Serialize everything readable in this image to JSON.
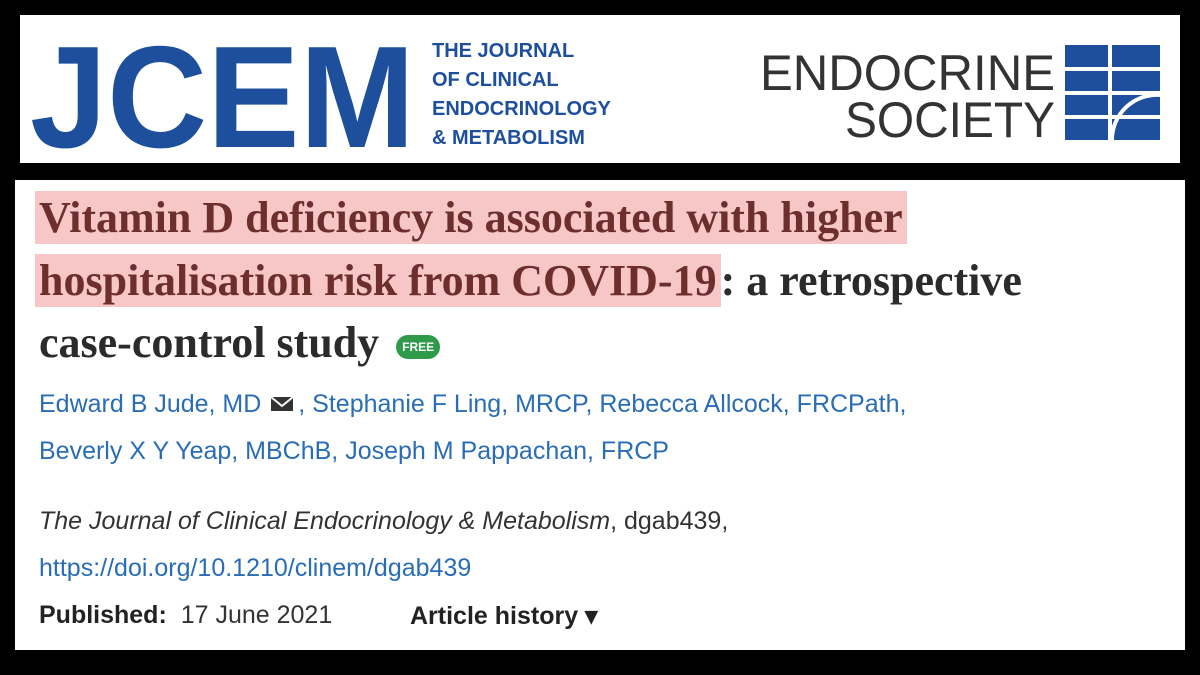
{
  "header": {
    "logo": "JCEM",
    "journal_lines": [
      "THE JOURNAL",
      "OF CLINICAL",
      "ENDOCRINOLOGY",
      "& METABOLISM"
    ],
    "society_lines": [
      "ENDOCRINE",
      "SOCIETY"
    ]
  },
  "article": {
    "title_highlighted": [
      "Vitamin D deficiency is associated with higher",
      "hospitalisation risk from COVID-19"
    ],
    "title_rest": [
      ": a retrospective",
      "case-control study"
    ],
    "badge": "FREE",
    "author_lines": [
      "Edward B Jude, MD",
      ", Stephanie F Ling, MRCP, Rebecca Allcock, FRCPath,",
      "Beverly X Y Yeap, MBChB, Joseph M Pappachan, FRCP"
    ],
    "journal": "The Journal of Clinical Endocrinology & Metabolism",
    "article_id": ", dgab439,",
    "doi": "https://doi.org/10.1210/clinem/dgab439",
    "published_label": "Published:",
    "published_date": "17 June 2021",
    "history": "Article history ▾"
  }
}
